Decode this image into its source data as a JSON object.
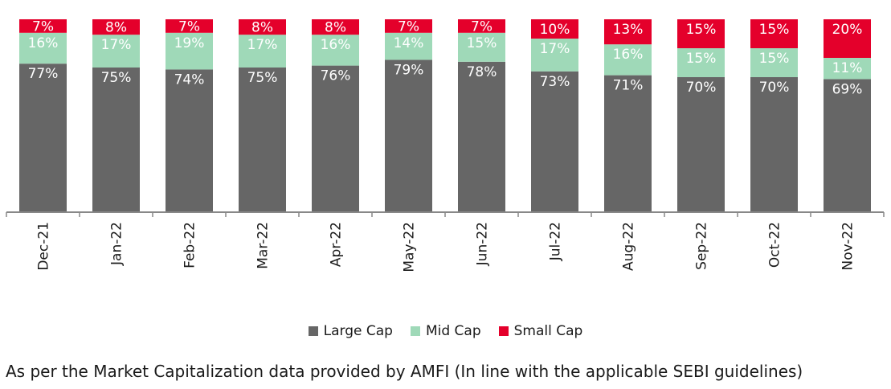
{
  "chart_data": {
    "type": "bar",
    "stacked": true,
    "categories": [
      "Dec-21",
      "Jan-22",
      "Feb-22",
      "Mar-22",
      "Apr-22",
      "May-22",
      "Jun-22",
      "Jul-22",
      "Aug-22",
      "Sep-22",
      "Oct-22",
      "Nov-22"
    ],
    "series": [
      {
        "name": "Large Cap",
        "color": "#666666",
        "values": [
          77,
          75,
          74,
          75,
          76,
          79,
          78,
          73,
          71,
          70,
          70,
          69
        ]
      },
      {
        "name": "Mid Cap",
        "color": "#9fd9b8",
        "values": [
          16,
          17,
          19,
          17,
          16,
          14,
          15,
          17,
          16,
          15,
          15,
          11
        ]
      },
      {
        "name": "Small Cap",
        "color": "#e4002b",
        "values": [
          7,
          8,
          7,
          8,
          8,
          7,
          7,
          10,
          13,
          15,
          15,
          20
        ]
      }
    ],
    "value_suffix": "%",
    "legend_position": "bottom",
    "grid": false
  },
  "footnote": "As per the Market Capitalization data provided by AMFI (In line with the applicable SEBI guidelines)"
}
